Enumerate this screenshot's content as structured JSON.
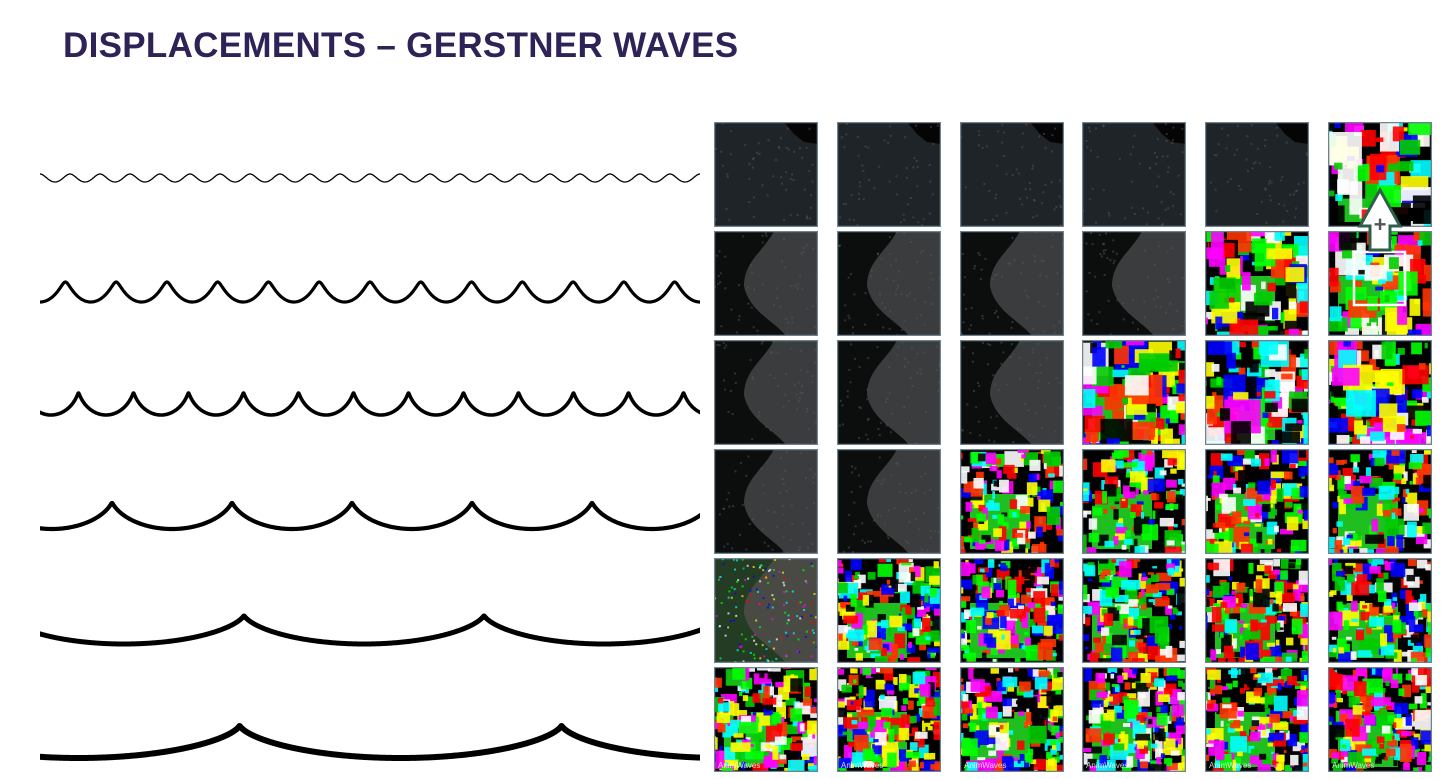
{
  "slide": {
    "title": "DISPLACEMENTS – GERSTNER WAVES"
  },
  "waves": {
    "description_count": 6,
    "items": [
      {
        "crests": 22,
        "steepness": 0.15,
        "amplitude": 1.0
      },
      {
        "crests": 13,
        "steepness": 0.55,
        "amplitude": 1.0
      },
      {
        "crests": 12,
        "steepness": 0.85,
        "amplitude": 1.0
      },
      {
        "crests": 5.5,
        "steepness": 0.9,
        "amplitude": 1.0
      },
      {
        "crests": 2.75,
        "steepness": 0.95,
        "amplitude": 1.0
      },
      {
        "crests": 2.05,
        "steepness": 0.97,
        "amplitude": 1.0
      }
    ]
  },
  "tiles": {
    "columns": 6,
    "rows": 6,
    "rows_data": [
      [
        "dark",
        "dark",
        "dark",
        "dark",
        "dark",
        "color"
      ],
      [
        "gray",
        "gray",
        "gray",
        "gray",
        "color",
        "color"
      ],
      [
        "gray",
        "gray",
        "gray",
        "color",
        "color",
        "color"
      ],
      [
        "gray",
        "gray",
        "color",
        "color",
        "color",
        "color"
      ],
      [
        "noise",
        "color",
        "color",
        "color",
        "color",
        "color"
      ],
      [
        "color",
        "color",
        "color",
        "color",
        "color",
        "color"
      ]
    ],
    "watermark": "AnimWaves"
  },
  "annotation": {
    "plus_label": "+",
    "arrow_color": "#2f5e4a"
  },
  "colors": {
    "title": "#2e2256",
    "wave_stroke": "#000000",
    "tile_border": "#6d8391"
  }
}
